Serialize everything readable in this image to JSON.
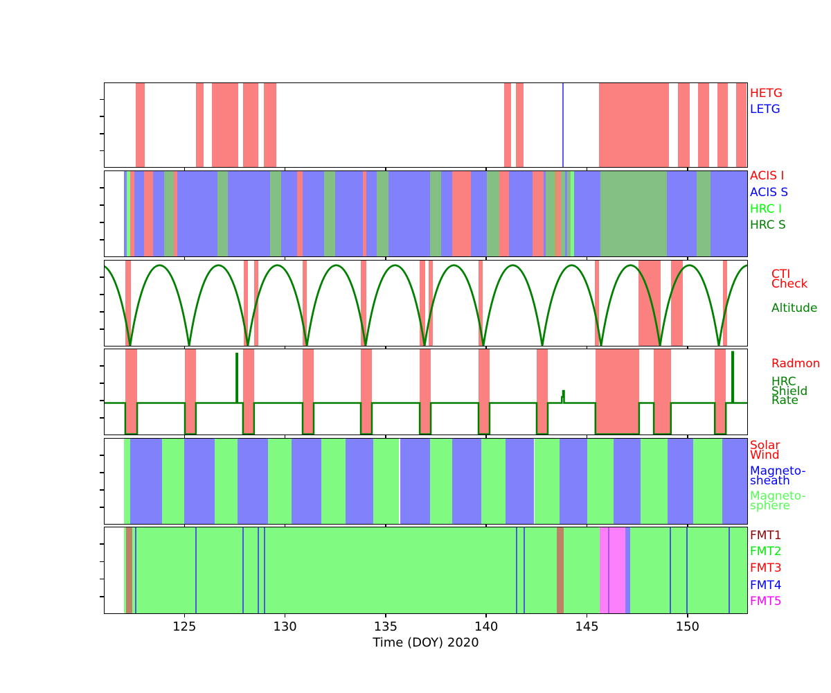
{
  "figure": {
    "xlabel": "Time (DOY) 2020",
    "x_range": [
      121,
      153
    ],
    "x_ticks": [
      125,
      130,
      135,
      140,
      145,
      150
    ],
    "colors": {
      "red": "#fb8080",
      "blue": "#8181fb",
      "green": "#80fa80",
      "sage": "#84bf84",
      "brown": "#bb8268",
      "magenta": "#fc80fc",
      "overlap": "#cf9b60",
      "dark_green_line": "#007f00",
      "letg_line": "#5757f2",
      "fmt4_line": "#4758d8",
      "fmt5_dark_line": "#b055e0"
    }
  },
  "chart_data": [
    {
      "id": "gratings",
      "type": "interval-timeline",
      "series": {
        "red": "hetg"
      },
      "labels": [
        {
          "id": "hetg",
          "lines": [
            "HETG"
          ],
          "color": "#ff0000"
        },
        {
          "id": "letg",
          "lines": [
            "LETG"
          ],
          "color": "#0000ff"
        }
      ],
      "bands": [
        {
          "s": 122.55,
          "e": 123.0,
          "k": "red"
        },
        {
          "s": 125.54,
          "e": 125.92,
          "k": "red"
        },
        {
          "s": 126.33,
          "e": 127.64,
          "k": "red"
        },
        {
          "s": 127.88,
          "e": 128.64,
          "k": "red"
        },
        {
          "s": 128.91,
          "e": 129.53,
          "k": "red"
        },
        {
          "s": 140.85,
          "e": 141.2,
          "k": "red"
        },
        {
          "s": 141.44,
          "e": 141.82,
          "k": "red"
        },
        {
          "s": 145.57,
          "e": 149.04,
          "k": "red"
        },
        {
          "s": 149.49,
          "e": 150.07,
          "k": "red"
        },
        {
          "s": 150.49,
          "e": 151.04,
          "k": "red"
        },
        {
          "s": 151.45,
          "e": 151.97,
          "k": "red"
        },
        {
          "s": 152.38,
          "e": 152.9,
          "k": "red"
        }
      ],
      "vlines": [
        {
          "d": 143.78,
          "w": 2,
          "hexkey": "letg_line",
          "n": "letg"
        }
      ]
    },
    {
      "id": "instruments",
      "type": "interval-timeline",
      "series": {
        "red": "acis-i",
        "blue": "acis-s",
        "green": "hrc-i",
        "sage": "hrc-s",
        "overlap": "acis-hrc-overlap"
      },
      "labels": [
        {
          "id": "acis-i",
          "lines": [
            "ACIS I"
          ],
          "color": "#ff0000"
        },
        {
          "id": "acis-s",
          "lines": [
            "ACIS S"
          ],
          "color": "#0000ff"
        },
        {
          "id": "hrc-i",
          "lines": [
            "HRC I"
          ],
          "color": "#00ff00"
        },
        {
          "id": "hrc-s",
          "lines": [
            "HRC S"
          ],
          "color": "#008000"
        }
      ],
      "bands": [
        {
          "s": 121.96,
          "e": 122.1,
          "k": "blue"
        },
        {
          "s": 122.1,
          "e": 122.27,
          "k": "green"
        },
        {
          "s": 122.27,
          "e": 122.48,
          "k": "red"
        },
        {
          "s": 122.48,
          "e": 122.96,
          "k": "blue"
        },
        {
          "s": 122.96,
          "e": 123.41,
          "k": "red"
        },
        {
          "s": 123.41,
          "e": 123.96,
          "k": "blue"
        },
        {
          "s": 123.96,
          "e": 124.44,
          "k": "sage"
        },
        {
          "s": 124.44,
          "e": 124.61,
          "k": "red"
        },
        {
          "s": 124.61,
          "e": 126.61,
          "k": "blue"
        },
        {
          "s": 126.61,
          "e": 127.12,
          "k": "sage"
        },
        {
          "s": 127.12,
          "e": 129.22,
          "k": "blue"
        },
        {
          "s": 129.22,
          "e": 129.77,
          "k": "sage"
        },
        {
          "s": 129.77,
          "e": 130.56,
          "k": "blue"
        },
        {
          "s": 130.56,
          "e": 130.84,
          "k": "red"
        },
        {
          "s": 130.84,
          "e": 131.91,
          "k": "blue"
        },
        {
          "s": 131.91,
          "e": 132.46,
          "k": "sage"
        },
        {
          "s": 132.46,
          "e": 133.83,
          "k": "blue"
        },
        {
          "s": 133.83,
          "e": 134.01,
          "k": "red"
        },
        {
          "s": 134.01,
          "e": 134.52,
          "k": "blue"
        },
        {
          "s": 134.52,
          "e": 135.11,
          "k": "sage"
        },
        {
          "s": 135.11,
          "e": 137.17,
          "k": "blue"
        },
        {
          "s": 137.17,
          "e": 137.72,
          "k": "sage"
        },
        {
          "s": 137.72,
          "e": 138.27,
          "k": "blue"
        },
        {
          "s": 138.27,
          "e": 139.2,
          "k": "red"
        },
        {
          "s": 139.2,
          "e": 139.99,
          "k": "blue"
        },
        {
          "s": 139.99,
          "e": 140.61,
          "k": "sage"
        },
        {
          "s": 140.61,
          "e": 141.09,
          "k": "red"
        },
        {
          "s": 141.09,
          "e": 142.26,
          "k": "blue"
        },
        {
          "s": 142.26,
          "e": 142.81,
          "k": "red"
        },
        {
          "s": 142.81,
          "e": 142.92,
          "k": "blue"
        },
        {
          "s": 142.92,
          "e": 143.36,
          "k": "sage"
        },
        {
          "s": 143.36,
          "e": 143.5,
          "k": "overlap"
        },
        {
          "s": 143.5,
          "e": 143.67,
          "k": "red"
        },
        {
          "s": 143.67,
          "e": 143.88,
          "k": "sage"
        },
        {
          "s": 143.88,
          "e": 143.98,
          "k": "blue"
        },
        {
          "s": 143.98,
          "e": 144.15,
          "k": "sage"
        },
        {
          "s": 144.15,
          "e": 144.33,
          "k": "green"
        },
        {
          "s": 144.33,
          "e": 145.63,
          "k": "blue"
        },
        {
          "s": 145.63,
          "e": 148.94,
          "k": "sage"
        },
        {
          "s": 148.94,
          "e": 150.42,
          "k": "blue"
        },
        {
          "s": 150.42,
          "e": 151.11,
          "k": "sage"
        },
        {
          "s": 151.11,
          "e": 153.0,
          "k": "blue"
        }
      ]
    },
    {
      "id": "cti-altitude",
      "type": "interval-timeline-with-curve",
      "series": {
        "red": "cti-check"
      },
      "labels": [
        {
          "id": "cti-check",
          "lines": [
            "CTI",
            "Check"
          ],
          "color": "#ff0000"
        },
        {
          "id": "altitude",
          "lines": [
            "Altitude"
          ],
          "color": "#008000"
        }
      ],
      "bands": [
        {
          "s": 122.03,
          "e": 122.31,
          "k": "red"
        },
        {
          "s": 127.92,
          "e": 128.12,
          "k": "red"
        },
        {
          "s": 128.43,
          "e": 128.64,
          "k": "red"
        },
        {
          "s": 130.84,
          "e": 131.05,
          "k": "red"
        },
        {
          "s": 133.73,
          "e": 134.01,
          "k": "red"
        },
        {
          "s": 136.66,
          "e": 136.94,
          "k": "red"
        },
        {
          "s": 137.1,
          "e": 137.31,
          "k": "red"
        },
        {
          "s": 139.58,
          "e": 139.79,
          "k": "red"
        },
        {
          "s": 145.36,
          "e": 145.57,
          "k": "red"
        },
        {
          "s": 147.53,
          "e": 148.63,
          "k": "red"
        },
        {
          "s": 149.14,
          "e": 149.73,
          "k": "red"
        },
        {
          "s": 151.73,
          "e": 151.93,
          "k": "red"
        }
      ],
      "curve": {
        "series": "altitude",
        "perigee_days": [
          119.35,
          122.27,
          125.2,
          128.12,
          131.05,
          133.97,
          136.9,
          139.82,
          142.75,
          145.67,
          148.6,
          151.52,
          154.45
        ]
      }
    },
    {
      "id": "radmon-shield",
      "type": "interval-timeline-with-line",
      "series": {
        "red": "radmon"
      },
      "labels": [
        {
          "id": "radmon",
          "lines": [
            "Radmon"
          ],
          "color": "#ff0000"
        },
        {
          "id": "hrc-shield-rate",
          "lines": [
            "HRC",
            "Shield",
            "Rate"
          ],
          "color": "#008000"
        }
      ],
      "bands": [
        {
          "s": 122.03,
          "e": 122.62,
          "k": "red"
        },
        {
          "s": 124.99,
          "e": 125.54,
          "k": "red"
        },
        {
          "s": 127.88,
          "e": 128.43,
          "k": "red"
        },
        {
          "s": 130.84,
          "e": 131.39,
          "k": "red"
        },
        {
          "s": 133.73,
          "e": 134.28,
          "k": "red"
        },
        {
          "s": 136.66,
          "e": 137.21,
          "k": "red"
        },
        {
          "s": 139.58,
          "e": 140.13,
          "k": "red"
        },
        {
          "s": 142.47,
          "e": 143.02,
          "k": "red"
        },
        {
          "s": 145.39,
          "e": 147.56,
          "k": "red"
        },
        {
          "s": 148.29,
          "e": 149.14,
          "k": "red"
        },
        {
          "s": 151.32,
          "e": 151.87,
          "k": "red"
        }
      ],
      "step_line": {
        "series": "hrc-shield-rate",
        "points": [
          [
            121,
            0.38
          ],
          [
            122.03,
            0.38
          ],
          [
            122.03,
            0.02
          ],
          [
            122.62,
            0.02
          ],
          [
            122.62,
            0.38
          ],
          [
            124.99,
            0.38
          ],
          [
            124.99,
            0.02
          ],
          [
            125.54,
            0.02
          ],
          [
            125.54,
            0.38
          ],
          [
            127.55,
            0.38
          ],
          [
            127.55,
            0.95
          ],
          [
            127.6,
            0.95
          ],
          [
            127.6,
            0.38
          ],
          [
            127.88,
            0.38
          ],
          [
            127.88,
            0.02
          ],
          [
            128.43,
            0.02
          ],
          [
            128.43,
            0.38
          ],
          [
            130.84,
            0.38
          ],
          [
            130.84,
            0.02
          ],
          [
            131.39,
            0.02
          ],
          [
            131.39,
            0.38
          ],
          [
            133.73,
            0.38
          ],
          [
            133.73,
            0.02
          ],
          [
            134.28,
            0.02
          ],
          [
            134.28,
            0.38
          ],
          [
            136.66,
            0.38
          ],
          [
            136.66,
            0.02
          ],
          [
            137.21,
            0.02
          ],
          [
            137.21,
            0.38
          ],
          [
            139.58,
            0.38
          ],
          [
            139.58,
            0.02
          ],
          [
            140.13,
            0.02
          ],
          [
            140.13,
            0.38
          ],
          [
            142.47,
            0.38
          ],
          [
            142.47,
            0.02
          ],
          [
            143.02,
            0.02
          ],
          [
            143.02,
            0.38
          ],
          [
            143.72,
            0.38
          ],
          [
            143.72,
            0.45
          ],
          [
            143.78,
            0.45
          ],
          [
            143.78,
            0.52
          ],
          [
            143.83,
            0.52
          ],
          [
            143.83,
            0.38
          ],
          [
            145.39,
            0.38
          ],
          [
            145.39,
            0.02
          ],
          [
            147.56,
            0.02
          ],
          [
            147.56,
            0.38
          ],
          [
            148.29,
            0.38
          ],
          [
            148.29,
            0.02
          ],
          [
            149.14,
            0.02
          ],
          [
            149.14,
            0.38
          ],
          [
            151.32,
            0.38
          ],
          [
            151.32,
            0.02
          ],
          [
            151.87,
            0.02
          ],
          [
            151.87,
            0.38
          ],
          [
            152.18,
            0.38
          ],
          [
            152.18,
            0.97
          ],
          [
            152.24,
            0.97
          ],
          [
            152.24,
            0.38
          ],
          [
            153,
            0.38
          ]
        ]
      }
    },
    {
      "id": "magnetic-regions",
      "type": "interval-timeline",
      "series": {
        "green": "magnetosphere",
        "blue": "magnetosheath",
        "red": "solar-wind"
      },
      "labels": [
        {
          "id": "solar-wind",
          "lines": [
            "Solar",
            "Wind"
          ],
          "color": "#ff0000"
        },
        {
          "id": "magnetosheath",
          "lines": [
            "Magneto-",
            "sheath"
          ],
          "color": "#0000ff"
        },
        {
          "id": "magnetosphere",
          "lines": [
            "Magneto-",
            "sphere"
          ],
          "color": "#55fb55"
        }
      ],
      "bands": [
        {
          "s": 121.96,
          "e": 122.27,
          "k": "green"
        },
        {
          "s": 122.27,
          "e": 123.86,
          "k": "blue"
        },
        {
          "s": 123.86,
          "e": 124.96,
          "k": "green"
        },
        {
          "s": 124.96,
          "e": 126.47,
          "k": "blue"
        },
        {
          "s": 126.47,
          "e": 127.61,
          "k": "green"
        },
        {
          "s": 127.61,
          "e": 129.12,
          "k": "blue"
        },
        {
          "s": 129.12,
          "e": 130.29,
          "k": "green"
        },
        {
          "s": 130.29,
          "e": 131.77,
          "k": "blue"
        },
        {
          "s": 131.77,
          "e": 132.97,
          "k": "green"
        },
        {
          "s": 132.97,
          "e": 134.35,
          "k": "blue"
        },
        {
          "s": 134.35,
          "e": 135.62,
          "k": "green"
        },
        {
          "s": 135.69,
          "e": 137.17,
          "k": "blue"
        },
        {
          "s": 137.17,
          "e": 138.27,
          "k": "green"
        },
        {
          "s": 138.27,
          "e": 139.72,
          "k": "blue"
        },
        {
          "s": 139.72,
          "e": 140.92,
          "k": "green"
        },
        {
          "s": 140.92,
          "e": 142.33,
          "k": "blue"
        },
        {
          "s": 142.37,
          "e": 143.6,
          "k": "green"
        },
        {
          "s": 143.6,
          "e": 144.98,
          "k": "blue"
        },
        {
          "s": 144.98,
          "e": 146.29,
          "k": "green"
        },
        {
          "s": 146.29,
          "e": 147.63,
          "k": "blue"
        },
        {
          "s": 147.63,
          "e": 148.97,
          "k": "green"
        },
        {
          "s": 148.97,
          "e": 150.24,
          "k": "blue"
        },
        {
          "s": 150.24,
          "e": 151.69,
          "k": "green"
        },
        {
          "s": 151.69,
          "e": 153.0,
          "k": "blue"
        }
      ]
    },
    {
      "id": "fmt",
      "type": "interval-timeline",
      "series": {
        "green": "fmt2",
        "brown": "fmt1",
        "magenta": "fmt5",
        "blue": "fmt4"
      },
      "labels": [
        {
          "id": "fmt1",
          "lines": [
            "FMT1"
          ],
          "color": "#8b0000"
        },
        {
          "id": "fmt2",
          "lines": [
            "FMT2"
          ],
          "color": "#00ee00"
        },
        {
          "id": "fmt3",
          "lines": [
            "FMT3"
          ],
          "color": "#ff0000"
        },
        {
          "id": "fmt4",
          "lines": [
            "FMT4"
          ],
          "color": "#0000ff"
        },
        {
          "id": "fmt5",
          "lines": [
            "FMT5"
          ],
          "color": "#ff00ff"
        }
      ],
      "bands": [
        {
          "s": 121.96,
          "e": 153.0,
          "k": "green"
        },
        {
          "s": 122.07,
          "e": 122.38,
          "k": "brown"
        },
        {
          "s": 143.47,
          "e": 143.81,
          "k": "brown"
        },
        {
          "s": 145.6,
          "e": 146.87,
          "k": "magenta"
        },
        {
          "s": 146.87,
          "e": 147.11,
          "k": "blue"
        }
      ],
      "vlines": [
        {
          "d": 122.55,
          "w": 1.5,
          "hexkey": "fmt4_line",
          "n": "fmt4"
        },
        {
          "d": 125.54,
          "w": 1.5,
          "hexkey": "fmt4_line",
          "n": "fmt4"
        },
        {
          "d": 127.88,
          "w": 1.5,
          "hexkey": "fmt4_line",
          "n": "fmt4"
        },
        {
          "d": 128.64,
          "w": 1.5,
          "hexkey": "fmt4_line",
          "n": "fmt4"
        },
        {
          "d": 128.95,
          "w": 1.5,
          "hexkey": "fmt4_line",
          "n": "fmt4"
        },
        {
          "d": 141.47,
          "w": 1.5,
          "hexkey": "fmt4_line",
          "n": "fmt4"
        },
        {
          "d": 141.85,
          "w": 1.5,
          "hexkey": "fmt4_line",
          "n": "fmt4"
        },
        {
          "d": 146.05,
          "w": 1.5,
          "hexkey": "fmt5_dark_line",
          "n": "fmt5-transition"
        },
        {
          "d": 149.11,
          "w": 1.5,
          "hexkey": "fmt4_line",
          "n": "fmt4"
        },
        {
          "d": 149.94,
          "w": 1.5,
          "hexkey": "fmt4_line",
          "n": "fmt4"
        },
        {
          "d": 152.03,
          "w": 1.5,
          "hexkey": "fmt4_line",
          "n": "fmt4"
        }
      ]
    }
  ]
}
